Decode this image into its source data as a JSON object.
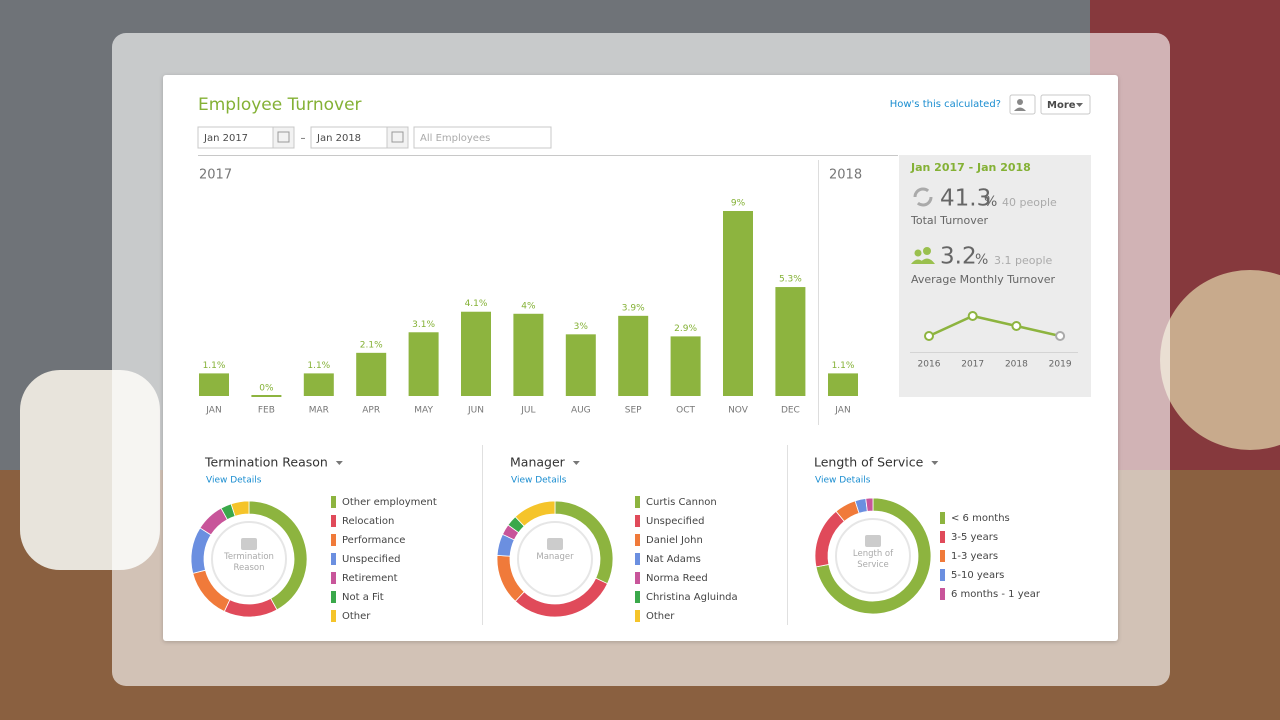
{
  "header": {
    "title": "Employee Turnover",
    "help_link": "How's this calculated?",
    "more_button": "More"
  },
  "filters": {
    "start": "Jan 2017",
    "separator": "–",
    "end": "Jan 2018",
    "employees": "All Employees"
  },
  "trend": {
    "type": "bar",
    "color": "#8db43f",
    "ylim": [
      0,
      9
    ],
    "groups": [
      {
        "label": "2017",
        "categories": [
          "JAN",
          "FEB",
          "MAR",
          "APR",
          "MAY",
          "JUN",
          "JUL",
          "AUG",
          "SEP",
          "OCT",
          "NOV",
          "DEC"
        ],
        "values": [
          1.1,
          0,
          1.1,
          2.1,
          3.1,
          4.1,
          4,
          3,
          3.9,
          2.9,
          9,
          5.3
        ],
        "value_labels": [
          "1.1%",
          "0%",
          "1.1%",
          "2.1%",
          "3.1%",
          "4.1%",
          "4%",
          "3%",
          "3.9%",
          "2.9%",
          "9%",
          "5.3%"
        ]
      },
      {
        "label": "2018",
        "categories": [
          "JAN"
        ],
        "values": [
          1.1
        ],
        "value_labels": [
          "1.1%"
        ]
      }
    ]
  },
  "summary": {
    "range": "Jan 2017 - Jan 2018",
    "total": {
      "value": 41.3,
      "unit": "%",
      "people": "40 people",
      "caption": "Total Turnover"
    },
    "monthly": {
      "value": 3.2,
      "unit": "%",
      "people": "3.1 people",
      "caption": "Average Monthly Turnover"
    },
    "history": {
      "type": "line",
      "categories": [
        "2016",
        "2017",
        "2018",
        "2019"
      ],
      "values": [
        2.2,
        3.2,
        2.7,
        2.2
      ],
      "ylim": [
        1,
        4
      ],
      "color": "#8db43f"
    }
  },
  "breakdowns": [
    {
      "title": "Termination Reason",
      "link": "View Details",
      "center_label": "Termination Reason",
      "type": "pie",
      "categories": [
        "Other employment",
        "Relocation",
        "Performance",
        "Unspecified",
        "Retirement",
        "Not a Fit",
        "Other"
      ],
      "values": [
        42,
        15,
        14,
        13,
        8,
        3,
        5
      ],
      "colors": [
        "#8db43f",
        "#e04a5a",
        "#f07a3a",
        "#6b8fe0",
        "#c8559a",
        "#3aa84a",
        "#f5c42a"
      ]
    },
    {
      "title": "Manager",
      "link": "View Details",
      "center_label": "Manager",
      "type": "pie",
      "categories": [
        "Curtis Cannon",
        "Unspecified",
        "Daniel John",
        "Nat Adams",
        "Norma Reed",
        "Christina Agluinda",
        "Other"
      ],
      "values": [
        32,
        30,
        14,
        6,
        3,
        3,
        12
      ],
      "colors": [
        "#8db43f",
        "#e04a5a",
        "#f07a3a",
        "#6b8fe0",
        "#c8559a",
        "#3aa84a",
        "#f5c42a"
      ]
    },
    {
      "title": "Length of Service",
      "link": "View Details",
      "center_label": "Length of Service",
      "type": "pie",
      "categories": [
        "< 6 months",
        "3-5 years",
        "1-3 years",
        "5-10 years",
        "6 months - 1 year"
      ],
      "values": [
        72,
        17,
        6,
        3,
        2
      ],
      "colors": [
        "#8db43f",
        "#e04a5a",
        "#f07a3a",
        "#6b8fe0",
        "#c8559a"
      ]
    }
  ]
}
